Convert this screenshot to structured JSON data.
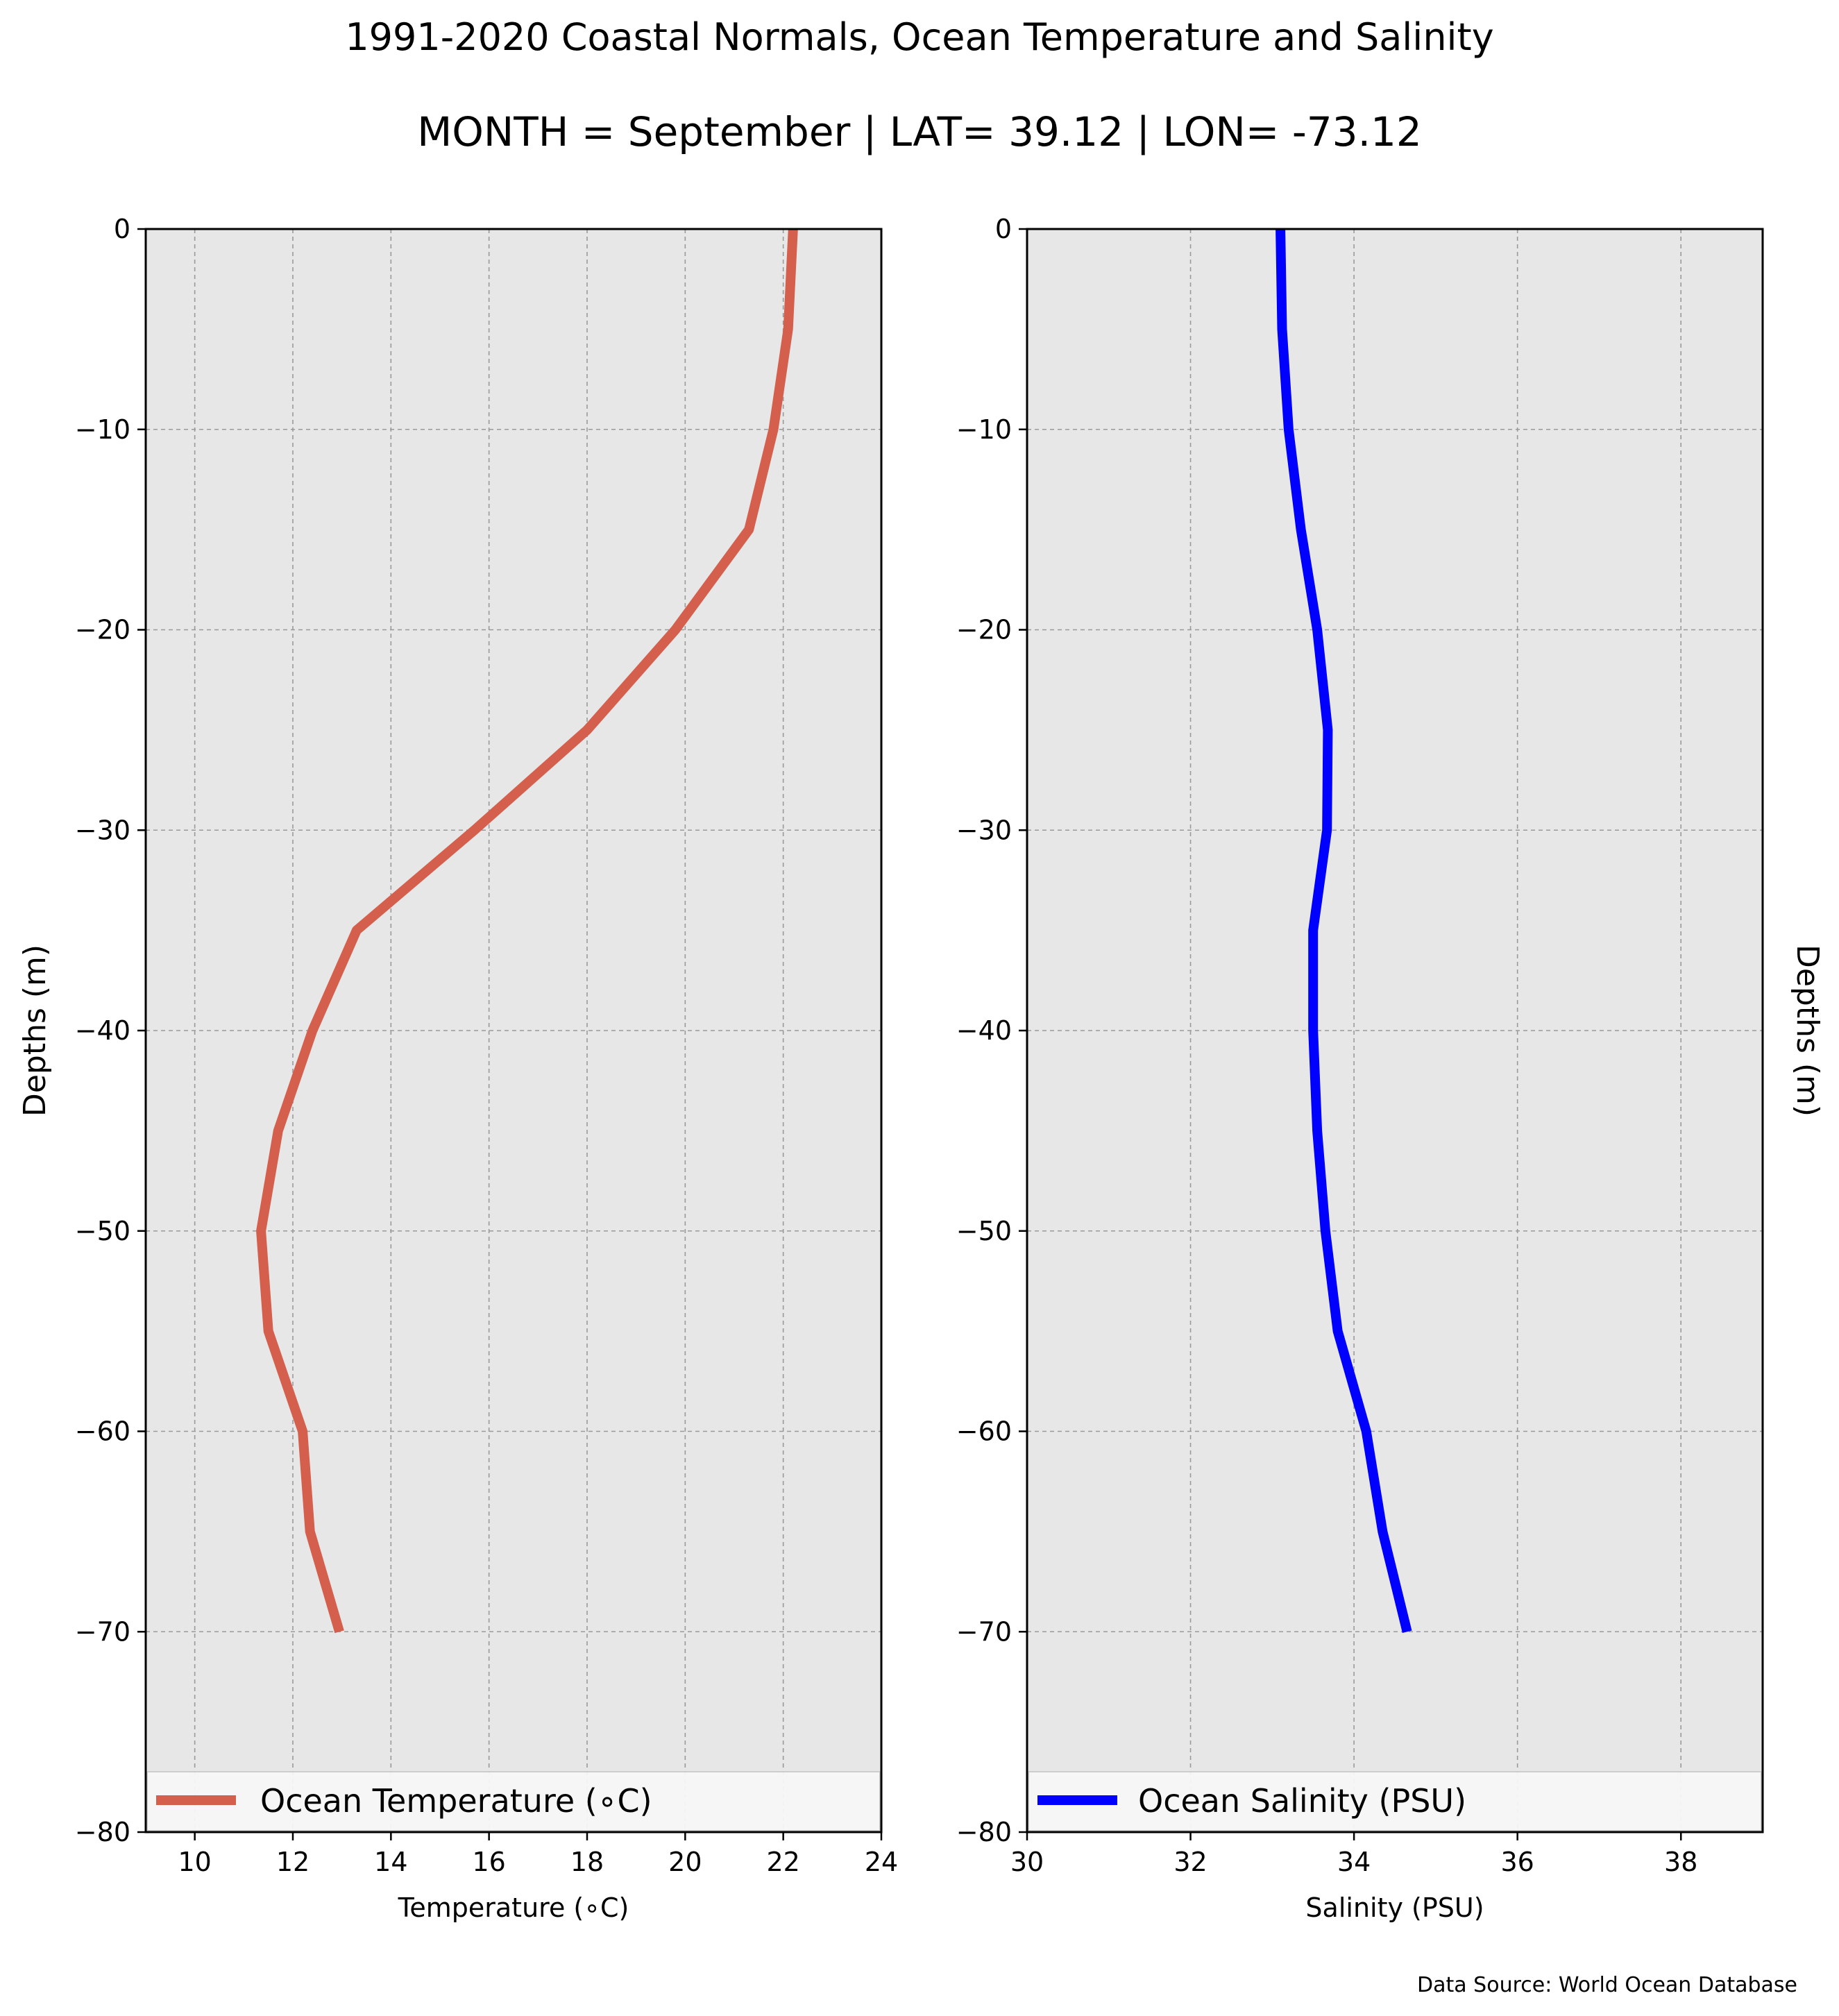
{
  "title": "1991-2020 Coastal Normals, Ocean Temperature and Salinity",
  "subtitle": "MONTH = September | LAT= 39.12 | LON= -73.12",
  "source": "Data Source: World Ocean Database",
  "chart_data": [
    {
      "type": "line",
      "xlabel": "Temperature (∘C)",
      "ylabel": "Depths (m)",
      "xlim": [
        9,
        24
      ],
      "ylim": [
        -80,
        0
      ],
      "xticks": [
        10,
        12,
        14,
        16,
        18,
        20,
        22,
        24
      ],
      "yticks": [
        0,
        -10,
        -20,
        -30,
        -40,
        -50,
        -60,
        -70,
        -80
      ],
      "xtick_labels": [
        "10",
        "12",
        "14",
        "16",
        "18",
        "20",
        "22",
        "24"
      ],
      "ytick_labels": [
        "0",
        "−10",
        "−20",
        "−30",
        "−40",
        "−50",
        "−60",
        "−70",
        "−80"
      ],
      "grid": true,
      "legend": "lower-center",
      "color": "#d45f4d",
      "series": [
        {
          "name": "Ocean Temperature (∘C)",
          "x": [
            22.2,
            22.1,
            21.8,
            21.3,
            19.8,
            18.0,
            15.7,
            13.3,
            12.4,
            11.7,
            11.35,
            11.5,
            12.2,
            12.35,
            12.95
          ],
          "y": [
            0,
            -5,
            -10,
            -15,
            -20,
            -25,
            -30,
            -35,
            -40,
            -45,
            -50,
            -55,
            -60,
            -65,
            -70
          ]
        }
      ]
    },
    {
      "type": "line",
      "xlabel": "Salinity (PSU)",
      "ylabel": "Depths (m)",
      "xlim": [
        30,
        39
      ],
      "ylim": [
        -80,
        0
      ],
      "xticks": [
        30,
        32,
        34,
        36,
        38
      ],
      "yticks": [
        0,
        -10,
        -20,
        -30,
        -40,
        -50,
        -60,
        -70,
        -80
      ],
      "xtick_labels": [
        "30",
        "32",
        "34",
        "36",
        "38"
      ],
      "ytick_labels": [
        "0",
        "−10",
        "−20",
        "−30",
        "−40",
        "−50",
        "−60",
        "−70",
        "−80"
      ],
      "grid": true,
      "legend": "lower-center",
      "color": "#0000ff",
      "series": [
        {
          "name": "Ocean Salinity (PSU)",
          "x": [
            33.1,
            33.12,
            33.2,
            33.35,
            33.55,
            33.68,
            33.67,
            33.5,
            33.5,
            33.55,
            33.65,
            33.8,
            34.15,
            34.35,
            34.65
          ],
          "y": [
            0,
            -5,
            -10,
            -15,
            -20,
            -25,
            -30,
            -35,
            -40,
            -45,
            -50,
            -55,
            -60,
            -65,
            -70
          ]
        }
      ]
    }
  ]
}
